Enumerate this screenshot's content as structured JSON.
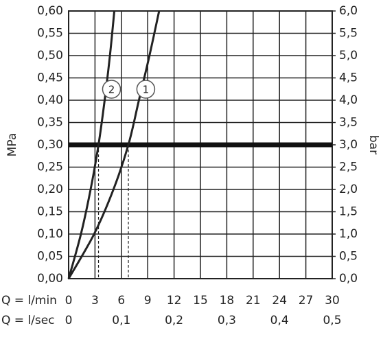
{
  "chart_data": {
    "type": "line",
    "ylabel": "MPa",
    "y2label": "bar",
    "xlabel": "Q = l/min",
    "x2label": "Q = l/sec",
    "xlim": [
      0,
      30
    ],
    "xticks": [
      0,
      3,
      6,
      9,
      12,
      15,
      18,
      21,
      24,
      27,
      30
    ],
    "x2lim": [
      0,
      0.5
    ],
    "x2ticks": [
      0,
      {
        "value": 0.1,
        "label": "0,1"
      },
      {
        "value": 0.2,
        "label": "0,2"
      },
      {
        "value": 0.3,
        "label": "0,3"
      },
      {
        "value": 0.4,
        "label": "0,4"
      },
      {
        "value": 0.5,
        "label": "0,5"
      }
    ],
    "ylim": [
      0,
      0.6
    ],
    "yticks": [
      {
        "value": 0,
        "label": "0,00"
      },
      {
        "value": 0.05,
        "label": "0,05"
      },
      {
        "value": 0.1,
        "label": "0,10"
      },
      {
        "value": 0.15,
        "label": "0,15"
      },
      {
        "value": 0.2,
        "label": "0,20"
      },
      {
        "value": 0.25,
        "label": "0,25"
      },
      {
        "value": 0.3,
        "label": "0,30"
      },
      {
        "value": 0.35,
        "label": "0,35"
      },
      {
        "value": 0.4,
        "label": "0,40"
      },
      {
        "value": 0.45,
        "label": "0,45"
      },
      {
        "value": 0.5,
        "label": "0,50"
      },
      {
        "value": 0.55,
        "label": "0,55"
      },
      {
        "value": 0.6,
        "label": "0,60"
      }
    ],
    "y2lim": [
      0,
      6
    ],
    "y2ticks": [
      {
        "value": 0,
        "label": "0,0"
      },
      {
        "value": 0.5,
        "label": "0,5"
      },
      {
        "value": 1,
        "label": "1,0"
      },
      {
        "value": 1.5,
        "label": "1,5"
      },
      {
        "value": 2,
        "label": "2,0"
      },
      {
        "value": 2.5,
        "label": "2,5"
      },
      {
        "value": 3,
        "label": "3,0"
      },
      {
        "value": 3.5,
        "label": "3,5"
      },
      {
        "value": 4,
        "label": "4,0"
      },
      {
        "value": 4.5,
        "label": "4,5"
      },
      {
        "value": 5,
        "label": "5,0"
      },
      {
        "value": 5.5,
        "label": "5,5"
      },
      {
        "value": 6,
        "label": "6,0"
      }
    ],
    "grid": true,
    "reference_line": 0.3,
    "series": [
      {
        "name": "1",
        "color": "#222222",
        "x": [
          0,
          2.9,
          5.1,
          6.8,
          8.0,
          9.2,
          10.3
        ],
        "values": [
          0,
          0.1,
          0.2,
          0.3,
          0.4,
          0.5,
          0.6
        ]
      },
      {
        "name": "2",
        "color": "#222222",
        "x": [
          0,
          1.4,
          2.5,
          3.4,
          4.1,
          4.7,
          5.2
        ],
        "values": [
          0,
          0.1,
          0.2,
          0.3,
          0.4,
          0.5,
          0.6
        ]
      }
    ]
  }
}
